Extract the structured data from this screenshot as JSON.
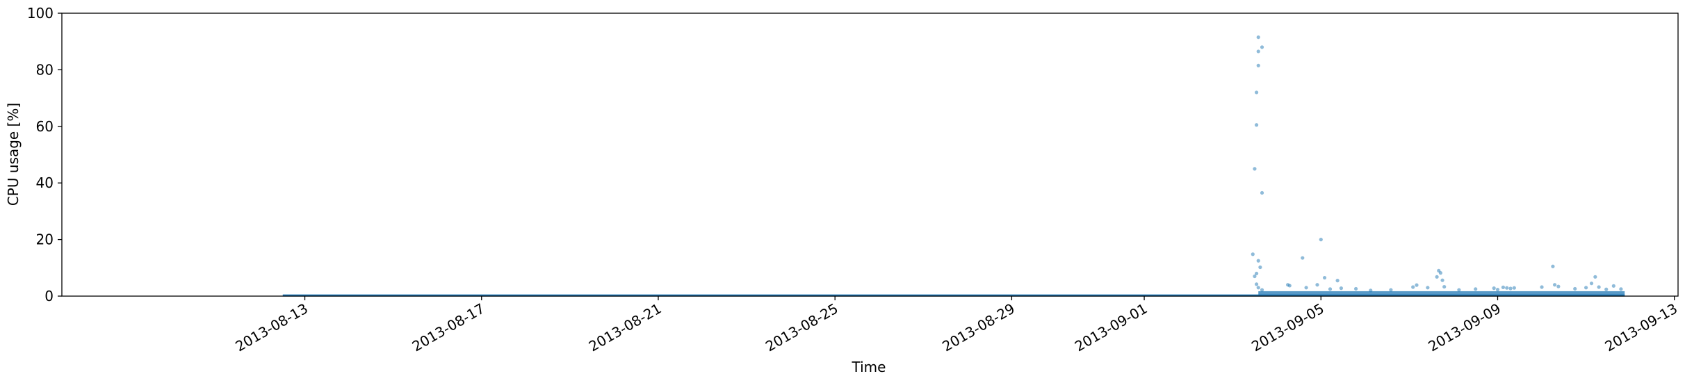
{
  "chart_data": {
    "type": "scatter",
    "title": "",
    "xlabel": "Time",
    "ylabel": "CPU usage [%]",
    "x_axis": "date",
    "xlim": [
      "2013-08-07T12:00",
      "2013-09-13T02:00"
    ],
    "ylim": [
      0,
      100
    ],
    "x_ticks": [
      "2013-08-13",
      "2013-08-17",
      "2013-08-21",
      "2013-08-25",
      "2013-08-29",
      "2013-09-01",
      "2013-09-05",
      "2013-09-09",
      "2013-09-13"
    ],
    "y_ticks": [
      0,
      20,
      40,
      60,
      80,
      100
    ],
    "grid": false,
    "legend": "none",
    "color": "#1f77b4",
    "series": [
      {
        "baseline": {
          "x_start": "2013-08-12T12:00",
          "x_end": "2013-09-11T21:00",
          "y": 0.2
        },
        "dense_band": {
          "x_start": "2013-09-03T14:00",
          "x_end": "2013-09-11T21:00",
          "y": 1.0
        },
        "points": [
          [
            "2013-09-03T14:00",
            91.5
          ],
          [
            "2013-09-03T14:00",
            86.5
          ],
          [
            "2013-09-03T16:00",
            88.0
          ],
          [
            "2013-09-03T14:00",
            81.5
          ],
          [
            "2013-09-03T13:00",
            72.0
          ],
          [
            "2013-09-03T13:00",
            60.5
          ],
          [
            "2013-09-03T12:00",
            45.0
          ],
          [
            "2013-09-03T16:00",
            36.5
          ],
          [
            "2013-09-03T11:00",
            14.8
          ],
          [
            "2013-09-03T14:00",
            12.5
          ],
          [
            "2013-09-03T15:00",
            10.2
          ],
          [
            "2013-09-03T13:00",
            8.0
          ],
          [
            "2013-09-03T12:00",
            7.0
          ],
          [
            "2013-09-03T13:00",
            4.2
          ],
          [
            "2013-09-03T14:00",
            3.0
          ],
          [
            "2013-09-03T16:00",
            2.2
          ],
          [
            "2013-09-04T06:00",
            4.0
          ],
          [
            "2013-09-04T07:00",
            3.7
          ],
          [
            "2013-09-04T14:00",
            13.5
          ],
          [
            "2013-09-04T16:00",
            3.0
          ],
          [
            "2013-09-04T22:00",
            4.0
          ],
          [
            "2013-09-05T00:00",
            20.0
          ],
          [
            "2013-09-05T02:00",
            6.5
          ],
          [
            "2013-09-05T05:00",
            2.5
          ],
          [
            "2013-09-05T09:00",
            5.5
          ],
          [
            "2013-09-05T11:00",
            2.8
          ],
          [
            "2013-09-05T19:00",
            2.6
          ],
          [
            "2013-09-06T03:00",
            2.0
          ],
          [
            "2013-09-06T14:00",
            2.2
          ],
          [
            "2013-09-07T02:00",
            3.2
          ],
          [
            "2013-09-07T04:00",
            3.9
          ],
          [
            "2013-09-07T10:00",
            3.0
          ],
          [
            "2013-09-07T16:00",
            9.0
          ],
          [
            "2013-09-07T17:00",
            8.2
          ],
          [
            "2013-09-07T15:00",
            6.8
          ],
          [
            "2013-09-07T18:00",
            5.6
          ],
          [
            "2013-09-07T19:00",
            3.3
          ],
          [
            "2013-09-08T03:00",
            2.2
          ],
          [
            "2013-09-08T12:00",
            2.5
          ],
          [
            "2013-09-08T22:00",
            2.8
          ],
          [
            "2013-09-09T00:00",
            2.3
          ],
          [
            "2013-09-09T03:00",
            3.1
          ],
          [
            "2013-09-09T05:00",
            2.9
          ],
          [
            "2013-09-09T07:00",
            2.7
          ],
          [
            "2013-09-09T09:00",
            2.9
          ],
          [
            "2013-09-10T00:00",
            3.2
          ],
          [
            "2013-09-10T06:00",
            10.5
          ],
          [
            "2013-09-10T07:00",
            4.0
          ],
          [
            "2013-09-10T09:00",
            3.4
          ],
          [
            "2013-09-10T18:00",
            2.6
          ],
          [
            "2013-09-11T00:00",
            3.0
          ],
          [
            "2013-09-11T03:00",
            4.5
          ],
          [
            "2013-09-11T05:00",
            6.8
          ],
          [
            "2013-09-11T07:00",
            3.2
          ],
          [
            "2013-09-11T11:00",
            2.4
          ],
          [
            "2013-09-11T15:00",
            3.6
          ],
          [
            "2013-09-11T19:00",
            2.5
          ]
        ]
      }
    ]
  }
}
